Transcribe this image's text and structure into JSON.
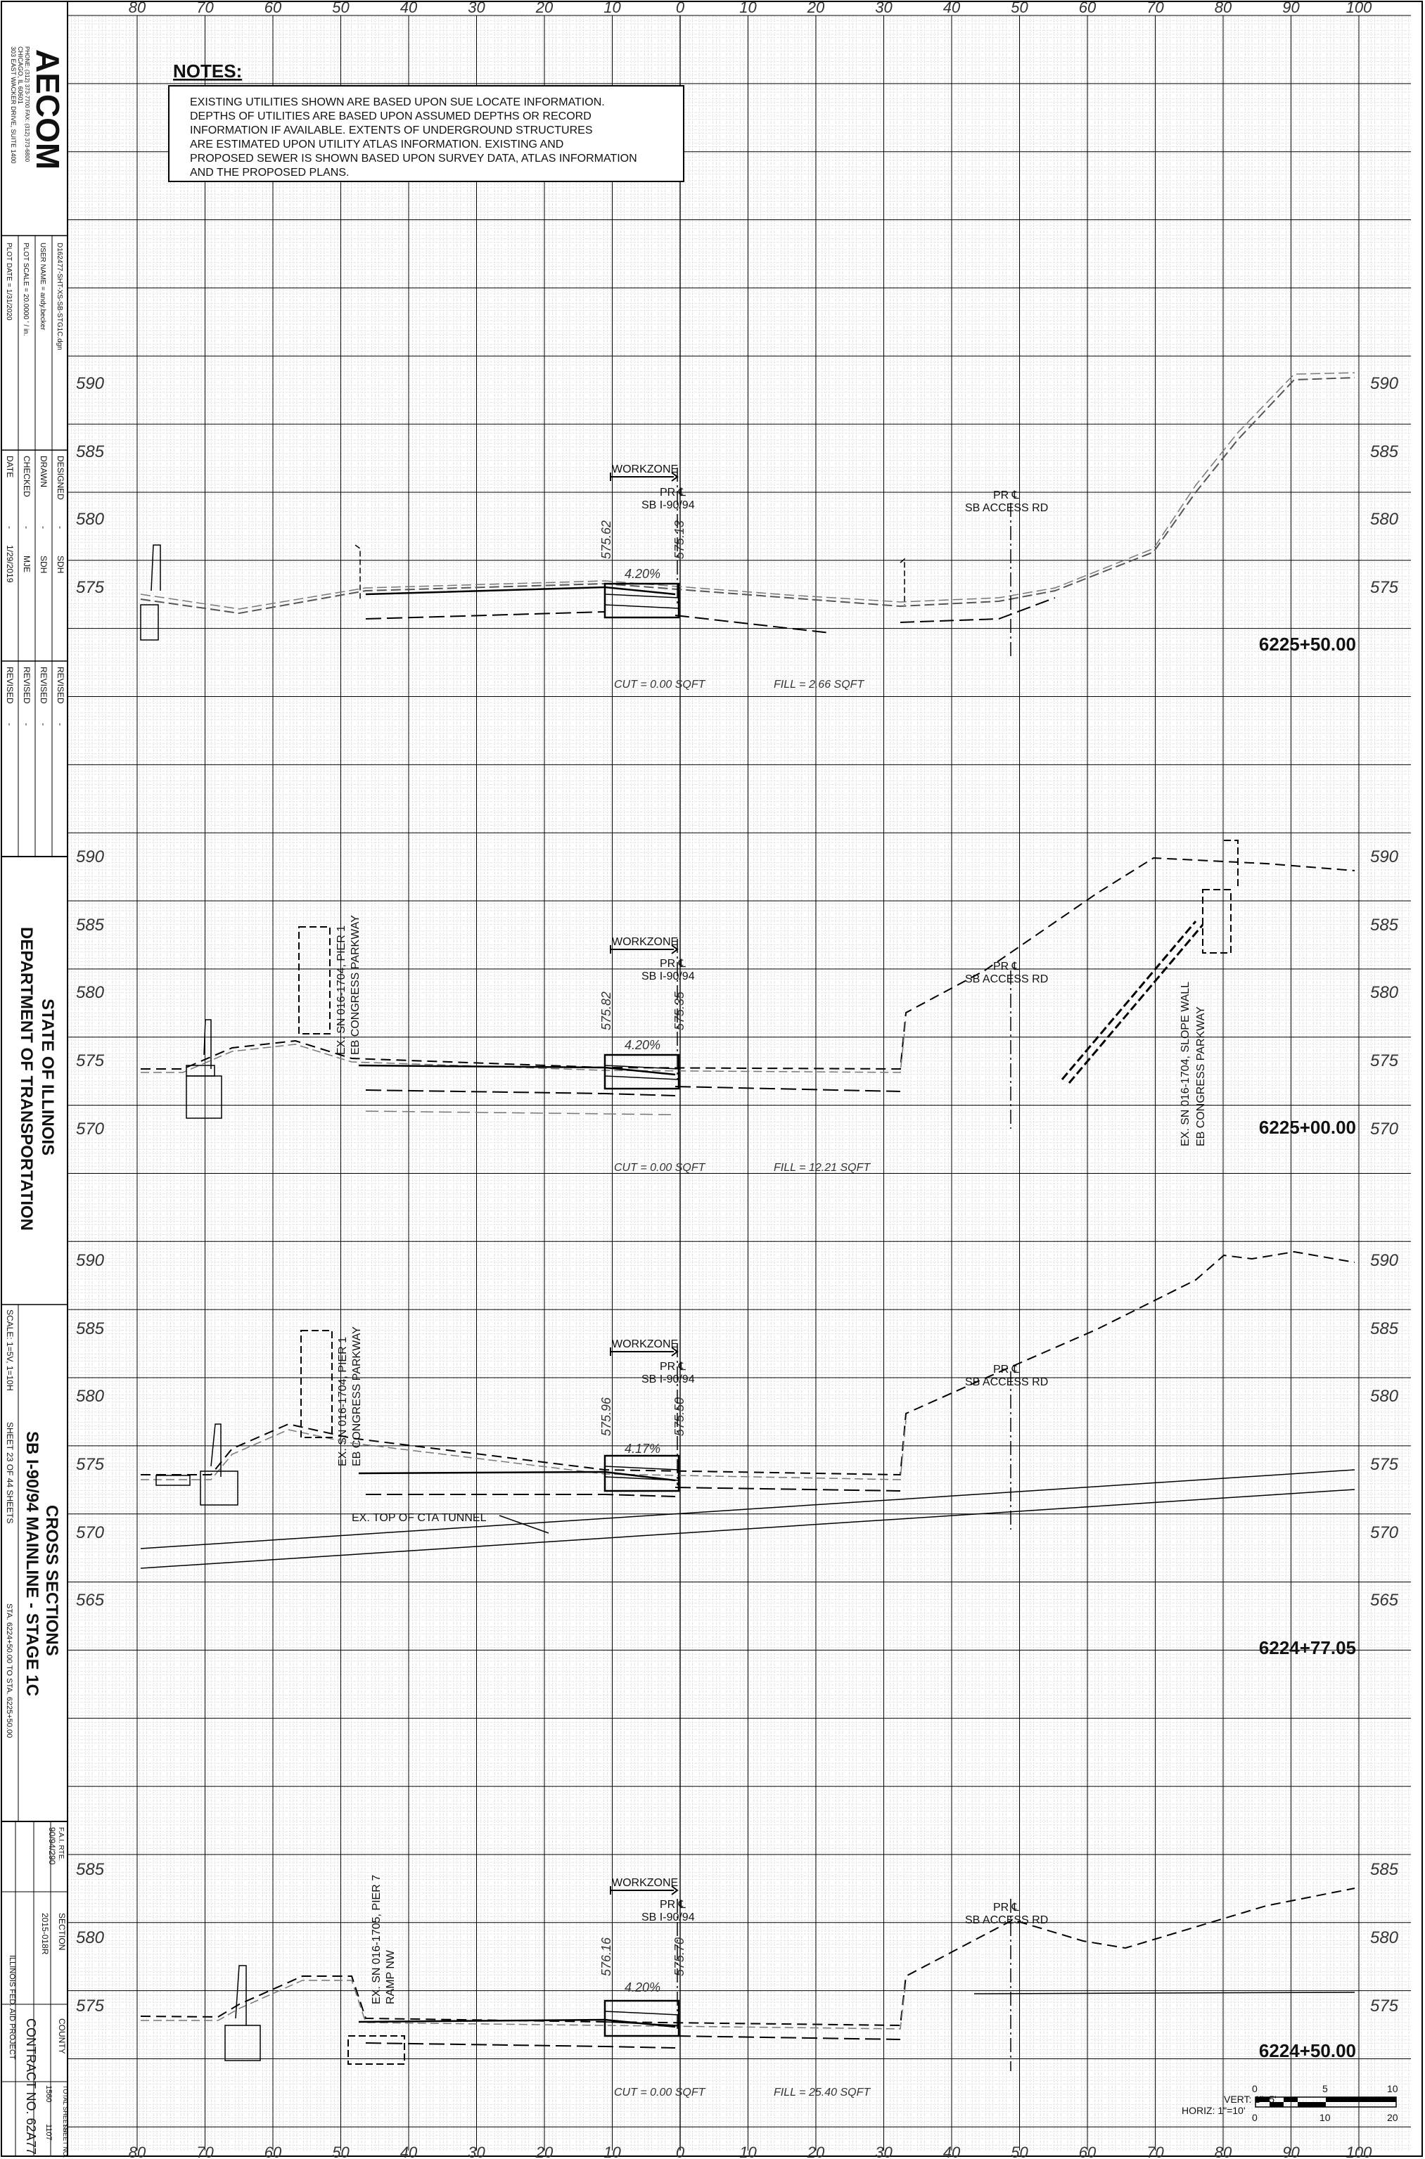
{
  "title_block": {
    "company": "AECOM",
    "company_address": [
      "303 EAST WACKER DRIVE, SUITE 1400",
      "CHICAGO, IL 60601",
      "PHONE: (312) 373-7700 FAX: (312) 373-6800"
    ],
    "file_name": "D162477-SHT-XS-SB-STG1C.dgn",
    "user_name": "USER NAME = andy.becker",
    "plot_scale": "PLOT SCALE = 20.0000 ' / in.",
    "plot_date": "PLOT DATE = 1/31/2020",
    "designed": {
      "label": "DESIGNED",
      "value": "SDH"
    },
    "drawn": {
      "label": "DRAWN",
      "value": "SDH"
    },
    "checked": {
      "label": "CHECKED",
      "value": "MJE"
    },
    "date": {
      "label": "DATE",
      "value": "1/29/2019"
    },
    "revised_label": "REVISED",
    "dash": "-",
    "agency_line1": "STATE OF ILLINOIS",
    "agency_line2": "DEPARTMENT OF TRANSPORTATION",
    "scale": "SCALE: 1=5V, 1=10H",
    "sheet": "SHEET 23 OF 44 SHEETS",
    "sta_range": "STA. 6224+50.00 TO STA. 6225+50.00",
    "drawing_title1": "CROSS SECTIONS",
    "drawing_title2": "SB I-90/94 MAINLINE - STAGE 1C",
    "fai_rte_label": "F.A.I. RTE.",
    "fai_rte": "90/94/290",
    "section_label": "SECTION",
    "section": "2015-018R",
    "county_label": "COUNTY",
    "total_sheets_label": "TOTAL SHEETS",
    "total_sheets": "1560",
    "sheet_no_label": "SHEET NO.",
    "sheet_no": "1107",
    "project_note": "ILLINOIS FED. AID PROJECT",
    "contract": "CONTRACT NO. 62A77"
  },
  "notes": {
    "heading": "NOTES:",
    "lines": [
      "EXISTING UTILITIES SHOWN ARE BASED UPON SUE LOCATE INFORMATION.",
      "DEPTHS OF UTILITIES ARE BASED UPON ASSUMED DEPTHS OR RECORD",
      "INFORMATION IF AVAILABLE.  EXTENTS OF UNDERGROUND STRUCTURES",
      "ARE ESTIMATED UPON UTILITY ATLAS INFORMATION.  EXISTING AND",
      "PROPOSED SEWER IS SHOWN BASED UPON SURVEY DATA, ATLAS INFORMATION",
      "AND THE PROPOSED PLANS."
    ]
  },
  "offset_labels": [
    "80",
    "70",
    "60",
    "50",
    "40",
    "30",
    "20",
    "10",
    "0",
    "10",
    "20",
    "30",
    "40",
    "50",
    "60",
    "70",
    "80",
    "90",
    "100"
  ],
  "sections": [
    {
      "station": "6225+50.00",
      "elevations": [
        "590",
        "585",
        "580",
        "575"
      ],
      "workzone": "WORKZONE",
      "pr_cl_1a": "PR ℄",
      "pr_cl_1b": "SB I-90/94",
      "pr_cl_2a": "PR ℄",
      "pr_cl_2b": "SB ACCESS RD",
      "elev_left": "575.62",
      "elev_right": "575.13",
      "slope": "4.20%",
      "cut": "CUT = 0.00 SQFT",
      "fill": "FILL = 2.66 SQFT",
      "annotations": []
    },
    {
      "station": "6225+00.00",
      "elevations": [
        "590",
        "585",
        "580",
        "575",
        "570"
      ],
      "workzone": "WORKZONE",
      "pr_cl_1a": "PR ℄",
      "pr_cl_1b": "SB I-90/94",
      "pr_cl_2a": "PR ℄",
      "pr_cl_2b": "SB ACCESS RD",
      "elev_left": "575.82",
      "elev_right": "575.35",
      "slope": "4.20%",
      "cut": "CUT = 0.00 SQFT",
      "fill": "FILL = 12.21 SQFT",
      "annotations": [
        "EX. SN 016-1704, PIER 1",
        "EB CONGRESS PARKWAY",
        "EX. SN 016-1704, SLOPE WALL",
        "EB CONGRESS PARKWAY"
      ]
    },
    {
      "station": "6224+77.05",
      "elevations": [
        "590",
        "585",
        "580",
        "575",
        "570",
        "565"
      ],
      "workzone": "WORKZONE",
      "pr_cl_1a": "PR ℄",
      "pr_cl_1b": "SB I-90/94",
      "pr_cl_2a": "PR ℄",
      "pr_cl_2b": "SB ACCESS RD",
      "elev_left": "575.96",
      "elev_right": "575.50",
      "slope": "4.17%",
      "cut": "",
      "fill": "",
      "annotations": [
        "EX. SN 016-1704, PIER 1",
        "EB CONGRESS PARKWAY",
        "EX. TOP OF CTA TUNNEL"
      ]
    },
    {
      "station": "6224+50.00",
      "elevations": [
        "585",
        "580",
        "575"
      ],
      "workzone": "WORKZONE",
      "pr_cl_1a": "PR ℄",
      "pr_cl_1b": "SB I-90/94",
      "pr_cl_2a": "PR ℄",
      "pr_cl_2b": "SB ACCESS RD",
      "elev_left": "576.16",
      "elev_right": "575.70",
      "slope": "4.20%",
      "cut": "CUT = 0.00 SQFT",
      "fill": "FILL = 25.40 SQFT",
      "annotations": [
        "EX. SN 016-1705, PIER 7",
        "RAMP NW"
      ]
    }
  ],
  "scale_bar": {
    "vert": "VERT: 1\"=5'",
    "horiz": "HORIZ: 1\"=10'",
    "top_ticks": [
      "0",
      "5",
      "10"
    ],
    "bottom_ticks": [
      "0",
      "10",
      "20"
    ]
  }
}
